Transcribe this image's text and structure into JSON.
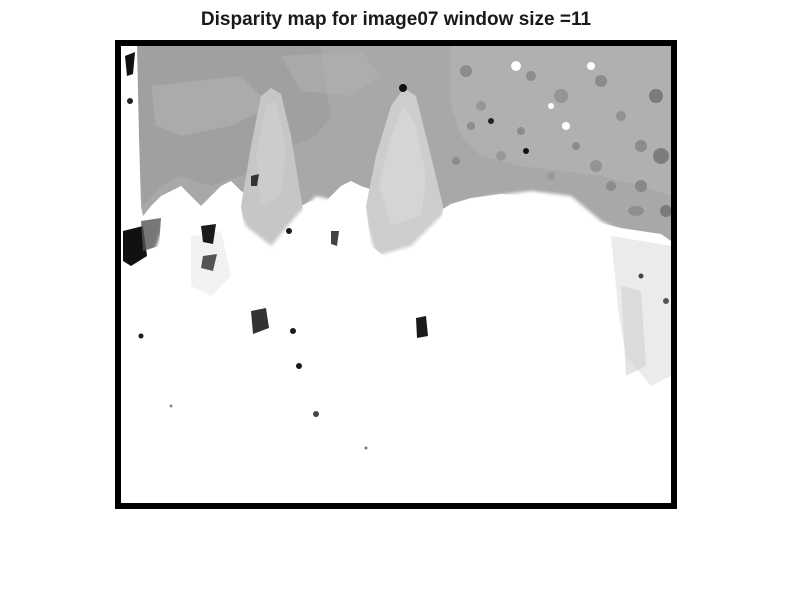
{
  "figure": {
    "title": "Disparity map for image07 window size =11"
  },
  "image": {
    "kind": "grayscale disparity map",
    "colors": {
      "frame": "#000000",
      "near": "#ffffff",
      "far": "#a6a6a6",
      "holes": "#111111"
    }
  }
}
